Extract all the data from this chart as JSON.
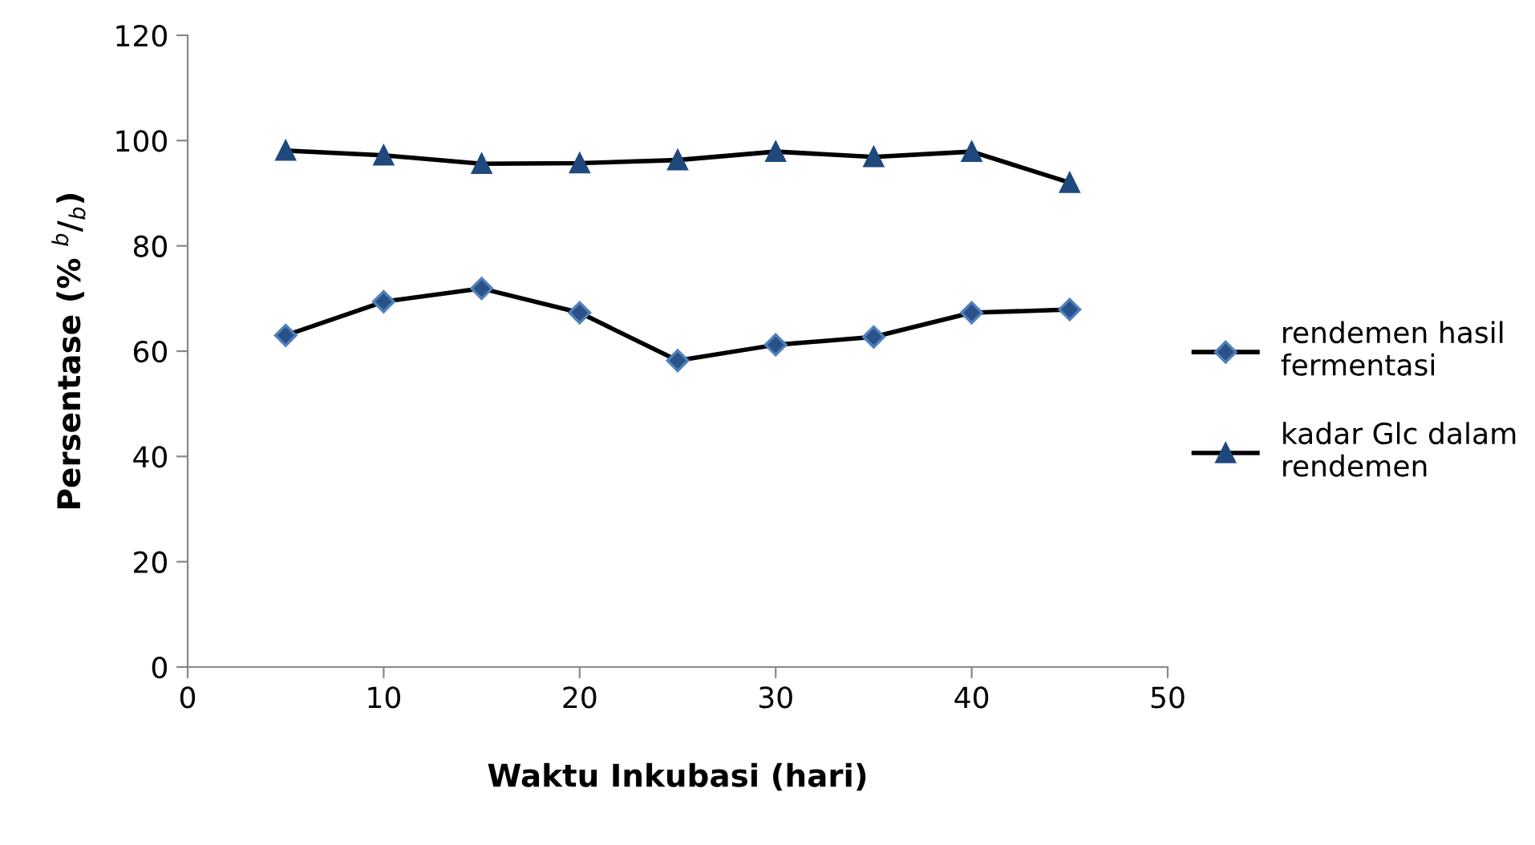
{
  "chart_data": {
    "type": "line",
    "xlabel": "Waktu Inkubasi (hari)",
    "ylabel": "Persentase (% $^{b}$/$_{b}$)",
    "x": [
      5,
      10,
      15,
      20,
      25,
      30,
      35,
      40,
      45
    ],
    "series": [
      {
        "name": "rendemen hasil\nfermentasi",
        "color": "#2a5288",
        "marker": "diamond",
        "values": [
          63.0,
          69.4,
          71.9,
          67.3,
          58.2,
          61.2,
          62.7,
          67.3,
          67.9
        ]
      },
      {
        "name": "kadar Glc dalam\nrendemen",
        "color": "#1f497d",
        "marker": "triangle",
        "values": [
          98.1,
          97.2,
          95.6,
          95.7,
          96.3,
          97.9,
          96.9,
          97.9,
          92.0
        ]
      }
    ],
    "xlim": [
      0,
      50
    ],
    "xticks": [
      0,
      10,
      20,
      30,
      40,
      50
    ],
    "ylim": [
      0,
      120
    ],
    "yticks": [
      0,
      20,
      40,
      60,
      80,
      100,
      120
    ],
    "grid": false,
    "legend": "right",
    "line_style": "solid"
  }
}
